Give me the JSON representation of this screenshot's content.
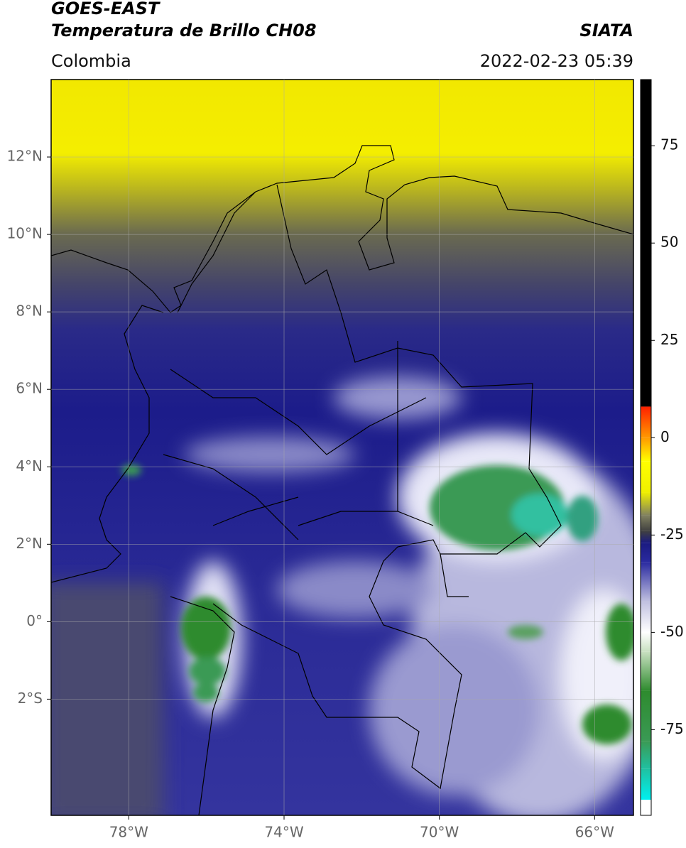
{
  "header": {
    "title_line1": "GOES-EAST",
    "title_line2": "Temperatura de Brillo CH08",
    "region": "Colombia",
    "source": "SIATA",
    "datetime": "2022-02-23 05:39"
  },
  "map": {
    "lon_lim": [
      -80,
      -65
    ],
    "lat_lim": [
      -5,
      14
    ],
    "lon_ticks": [
      {
        "value": -78,
        "label": "78°W"
      },
      {
        "value": -74,
        "label": "74°W"
      },
      {
        "value": -70,
        "label": "70°W"
      },
      {
        "value": -66,
        "label": "66°W"
      }
    ],
    "lat_ticks": [
      {
        "value": 12,
        "label": "12°N"
      },
      {
        "value": 10,
        "label": "10°N"
      },
      {
        "value": 8,
        "label": "8°N"
      },
      {
        "value": 6,
        "label": "6°N"
      },
      {
        "value": 4,
        "label": "4°N"
      },
      {
        "value": 2,
        "label": "2°N"
      },
      {
        "value": 0,
        "label": "0°"
      },
      {
        "value": -2,
        "label": "2°S"
      }
    ],
    "grid": true
  },
  "colorbar": {
    "lim": [
      -97,
      92
    ],
    "ticks": [
      75,
      50,
      25,
      0,
      -25,
      -50,
      -75
    ],
    "stops": [
      {
        "value": -97,
        "color": "#ffffff"
      },
      {
        "value": -93,
        "color": "#ffffff"
      },
      {
        "value": -93,
        "color": "#00f0f0"
      },
      {
        "value": -85,
        "color": "#20c0a0"
      },
      {
        "value": -78,
        "color": "#3a9a55"
      },
      {
        "value": -65,
        "color": "#2e8b2e"
      },
      {
        "value": -55,
        "color": "#c8e0c0"
      },
      {
        "value": -50,
        "color": "#ffffff"
      },
      {
        "value": -42,
        "color": "#c0c0e0"
      },
      {
        "value": -32,
        "color": "#2a2aa0"
      },
      {
        "value": -27,
        "color": "#1a1a80"
      },
      {
        "value": -24,
        "color": "#404040"
      },
      {
        "value": -20,
        "color": "#808060"
      },
      {
        "value": -14,
        "color": "#f0f000"
      },
      {
        "value": -6,
        "color": "#ffff00"
      },
      {
        "value": 0,
        "color": "#ff9900"
      },
      {
        "value": 8,
        "color": "#ff2000"
      },
      {
        "value": 8,
        "color": "#000000"
      },
      {
        "value": 92,
        "color": "#000000"
      }
    ]
  }
}
